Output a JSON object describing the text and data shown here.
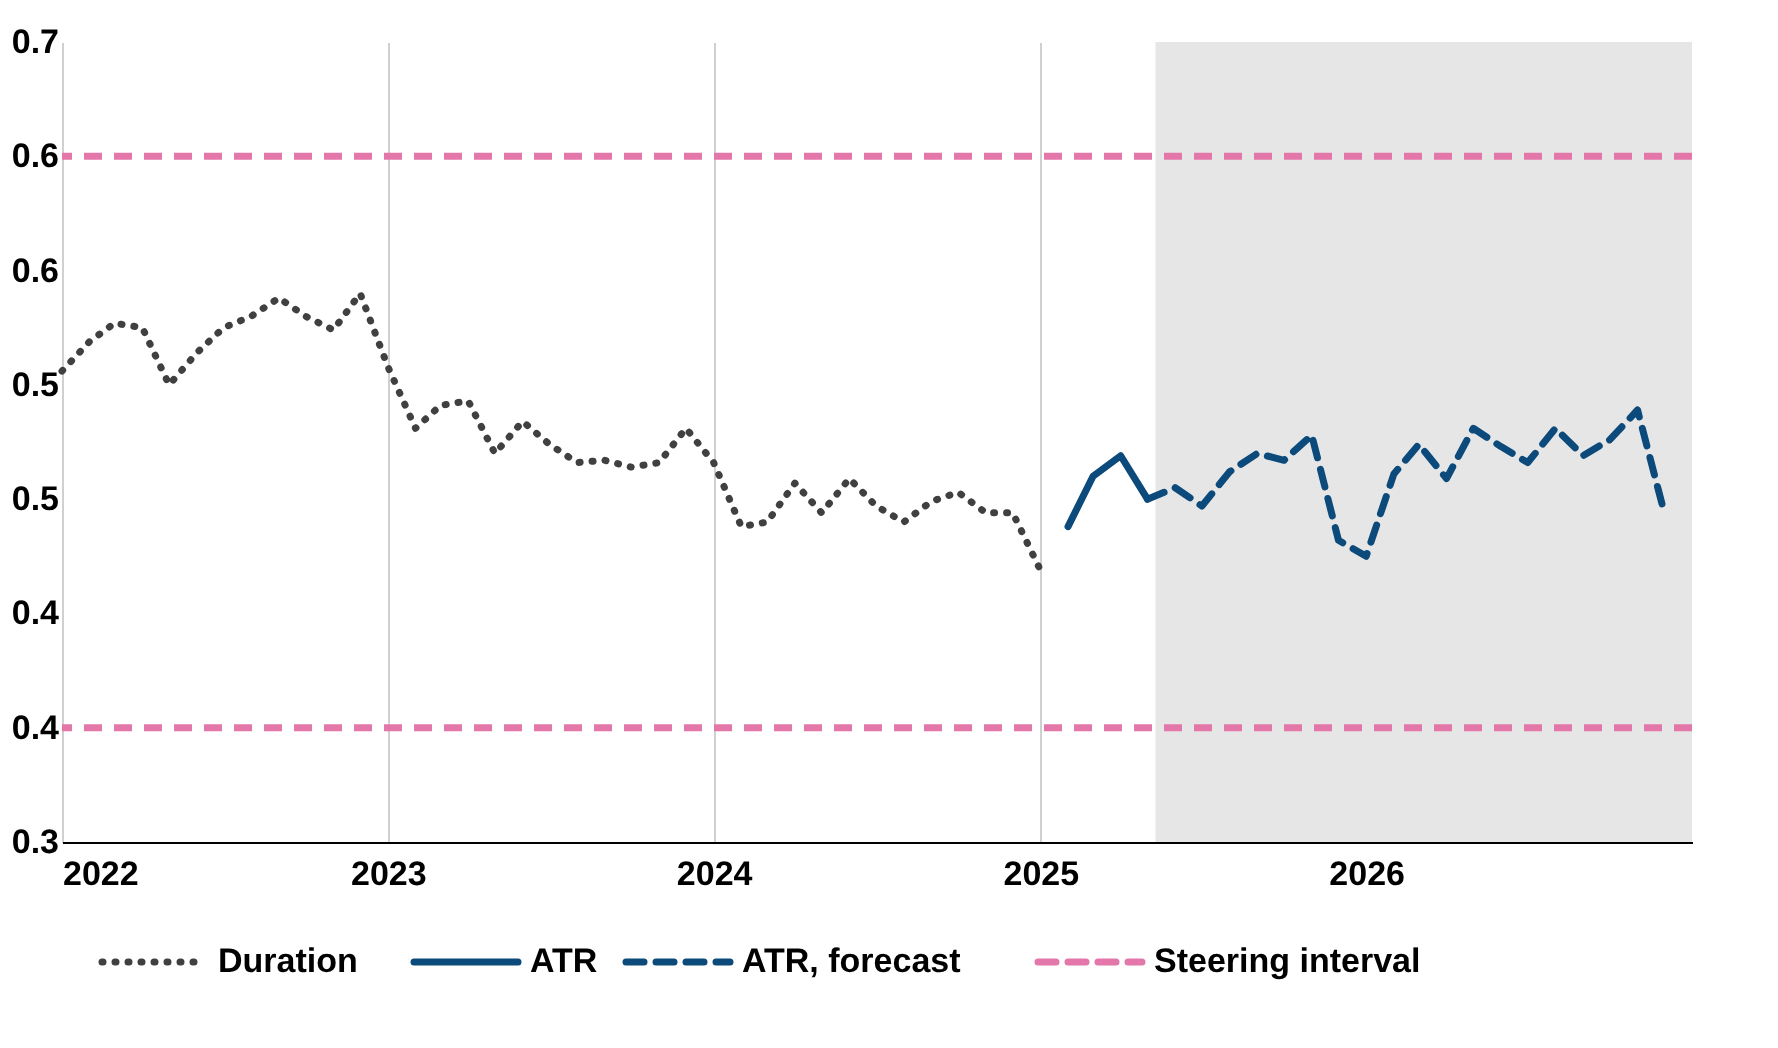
{
  "chart_data": {
    "type": "line",
    "xlim": [
      "2022-01-01",
      "2027-01-01"
    ],
    "xticks": [
      {
        "value": "2022-01-01",
        "label": "2022"
      },
      {
        "value": "2023-01-01",
        "label": "2023"
      },
      {
        "value": "2024-01-01",
        "label": "2024"
      },
      {
        "value": "2025-01-01",
        "label": "2025"
      },
      {
        "value": "2026-01-01",
        "label": "2026"
      }
    ],
    "ylim": [
      0.3,
      0.65
    ],
    "yticks": [
      {
        "value": 0.3,
        "label": "0.3"
      },
      {
        "value": 0.35,
        "label": "0.4"
      },
      {
        "value": 0.4,
        "label": "0.4"
      },
      {
        "value": 0.45,
        "label": "0.5"
      },
      {
        "value": 0.5,
        "label": "0.5"
      },
      {
        "value": 0.55,
        "label": "0.6"
      },
      {
        "value": 0.6,
        "label": "0.6"
      },
      {
        "value": 0.65,
        "label": "0.7"
      }
    ],
    "grid": "x",
    "legend": "bottom",
    "series": [
      {
        "name": "Duration",
        "color": "#404040",
        "line_style": "dotted",
        "x": [
          "2022-01",
          "2022-02",
          "2022-03",
          "2022-04",
          "2022-05",
          "2022-06",
          "2022-07",
          "2022-08",
          "2022-09",
          "2022-10",
          "2022-11",
          "2022-12",
          "2023-01",
          "2023-02",
          "2023-03",
          "2023-04",
          "2023-05",
          "2023-06",
          "2023-07",
          "2023-08",
          "2023-09",
          "2023-10",
          "2023-11",
          "2023-12",
          "2024-01",
          "2024-02",
          "2024-03",
          "2024-04",
          "2024-05",
          "2024-06",
          "2024-07",
          "2024-08",
          "2024-09",
          "2024-10",
          "2024-11",
          "2024-12",
          "2025-01"
        ],
        "values": [
          0.506,
          0.519,
          0.527,
          0.525,
          0.5,
          0.514,
          0.525,
          0.53,
          0.538,
          0.53,
          0.524,
          0.54,
          0.508,
          0.481,
          0.491,
          0.493,
          0.47,
          0.484,
          0.474,
          0.466,
          0.467,
          0.464,
          0.466,
          0.481,
          0.466,
          0.438,
          0.44,
          0.457,
          0.444,
          0.459,
          0.447,
          0.44,
          0.449,
          0.453,
          0.444,
          0.444,
          0.419
        ]
      },
      {
        "name": "ATR",
        "color": "#0b4a7a",
        "line_style": "solid",
        "x": [
          "2025-02",
          "2025-03",
          "2025-04",
          "2025-05"
        ],
        "values": [
          0.438,
          0.46,
          0.469,
          0.45
        ]
      },
      {
        "name": "ATR, forecast",
        "color": "#0b4a7a",
        "line_style": "dashed",
        "x": [
          "2025-05",
          "2025-06",
          "2025-07",
          "2025-08",
          "2025-09",
          "2025-10",
          "2025-11",
          "2025-12",
          "2026-01",
          "2026-02",
          "2026-03",
          "2026-04",
          "2026-05",
          "2026-06",
          "2026-07",
          "2026-08",
          "2026-09",
          "2026-10",
          "2026-11",
          "2026-12"
        ],
        "values": [
          0.45,
          0.455,
          0.447,
          0.462,
          0.47,
          0.467,
          0.478,
          0.432,
          0.425,
          0.461,
          0.474,
          0.459,
          0.481,
          0.473,
          0.466,
          0.481,
          0.469,
          0.476,
          0.489,
          0.444
        ]
      }
    ],
    "ref_lines": [
      {
        "axis": "y",
        "value": 0.6,
        "label": "Steering interval",
        "color": "#e377a9",
        "line_style": "dashed"
      },
      {
        "axis": "y",
        "value": 0.35,
        "color": "#e377a9",
        "line_style": "dashed"
      }
    ],
    "bands": [
      {
        "axis": "x",
        "from": "2025-05-10",
        "to": "2027-01-01",
        "color": "#e6e6e6"
      }
    ]
  }
}
